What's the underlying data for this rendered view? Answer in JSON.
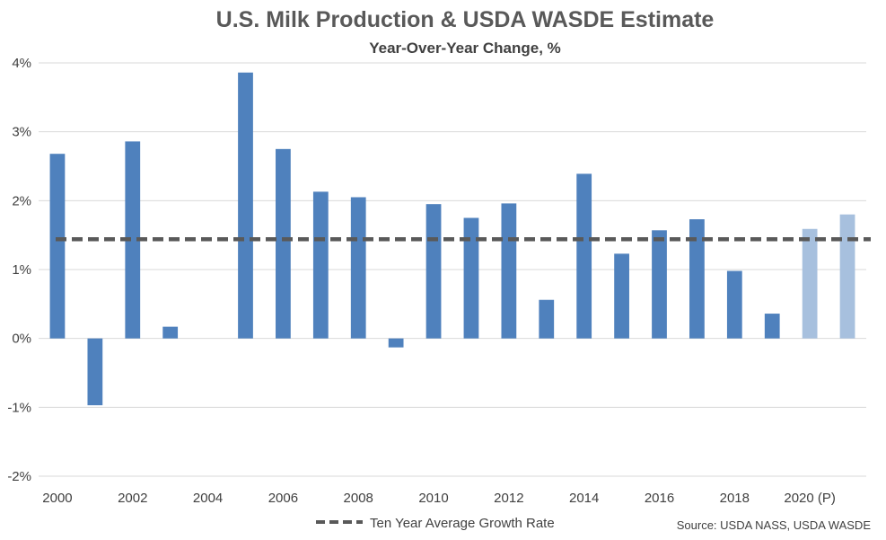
{
  "chart_data": {
    "type": "bar",
    "title": "U.S. Milk Production & USDA WASDE Estimate",
    "subtitle": "Year-Over-Year Change, %",
    "categories": [
      "2000",
      "2001",
      "2002",
      "2003",
      "2004",
      "2005",
      "2006",
      "2007",
      "2008",
      "2009",
      "2010",
      "2011",
      "2012",
      "2013",
      "2014",
      "2015",
      "2016",
      "2017",
      "2018",
      "2019",
      "2020 (P)",
      "2021 (P)"
    ],
    "x_tick_labels": [
      "2000",
      "",
      "2002",
      "",
      "2004",
      "",
      "2006",
      "",
      "2008",
      "",
      "2010",
      "",
      "2012",
      "",
      "2014",
      "",
      "2016",
      "",
      "2018",
      "",
      "2020 (P)",
      ""
    ],
    "series": [
      {
        "values": [
          2.68,
          -0.97,
          2.86,
          0.17,
          0.0,
          3.86,
          2.75,
          2.13,
          2.05,
          -0.13,
          1.95,
          1.75,
          1.96,
          0.56,
          2.39,
          1.23,
          1.57,
          1.73,
          0.98,
          0.36,
          1.59,
          1.8
        ],
        "projected": [
          false,
          false,
          false,
          false,
          false,
          false,
          false,
          false,
          false,
          false,
          false,
          false,
          false,
          false,
          false,
          false,
          false,
          false,
          false,
          false,
          true,
          true
        ]
      }
    ],
    "reference_line": {
      "name": "Ten Year Average Growth Rate",
      "value": 1.44,
      "style": "dashed"
    },
    "ylim": [
      -2,
      4
    ],
    "y_ticks": [
      -2,
      -1,
      0,
      1,
      2,
      3,
      4
    ],
    "y_tick_format": "percent",
    "grid": true,
    "legend_position": "bottom",
    "colors": {
      "actual": "#4f81bd",
      "projected": "#a7c0de",
      "average_line": "#595959",
      "grid": "#d9d9d9"
    },
    "source": "Source: USDA NASS, USDA WASDE"
  }
}
